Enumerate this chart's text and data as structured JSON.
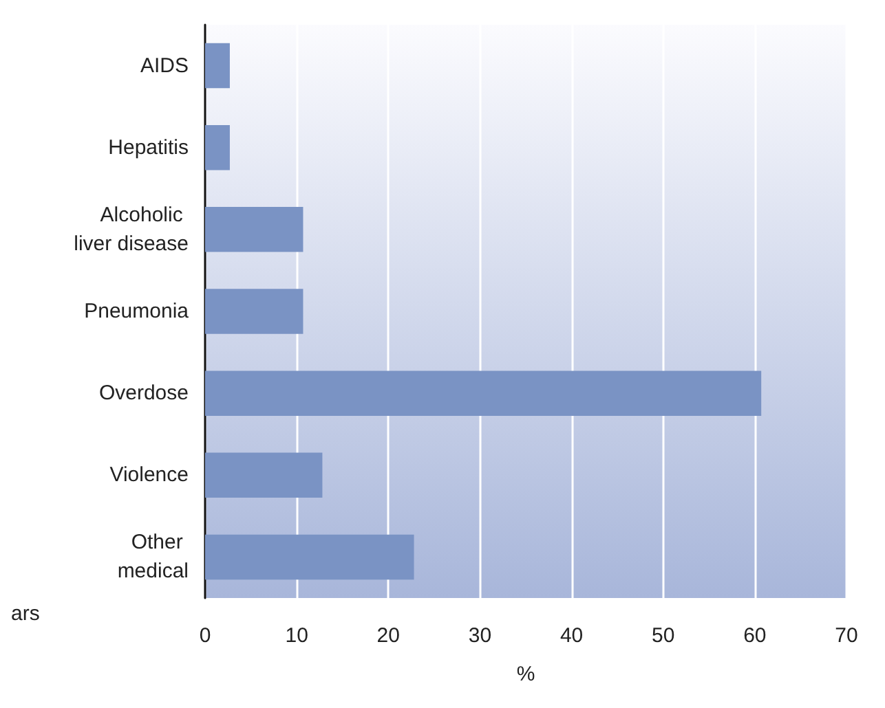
{
  "chart_data": {
    "type": "bar",
    "orientation": "horizontal",
    "xlabel": "%",
    "categories": [
      "AIDS",
      "Hepatitis",
      "Alcoholic liver disease",
      "Pneumonia",
      "Overdose",
      "Violence",
      "Other medical"
    ],
    "values": [
      2.7,
      2.7,
      10.7,
      10.7,
      60.7,
      12.8,
      22.8
    ],
    "color": "#7a93c4",
    "xlim": [
      0,
      70
    ],
    "xticks": [
      0,
      10,
      20,
      30,
      40,
      50,
      60,
      70
    ],
    "grid": "x",
    "annotations": [
      "ars"
    ]
  }
}
